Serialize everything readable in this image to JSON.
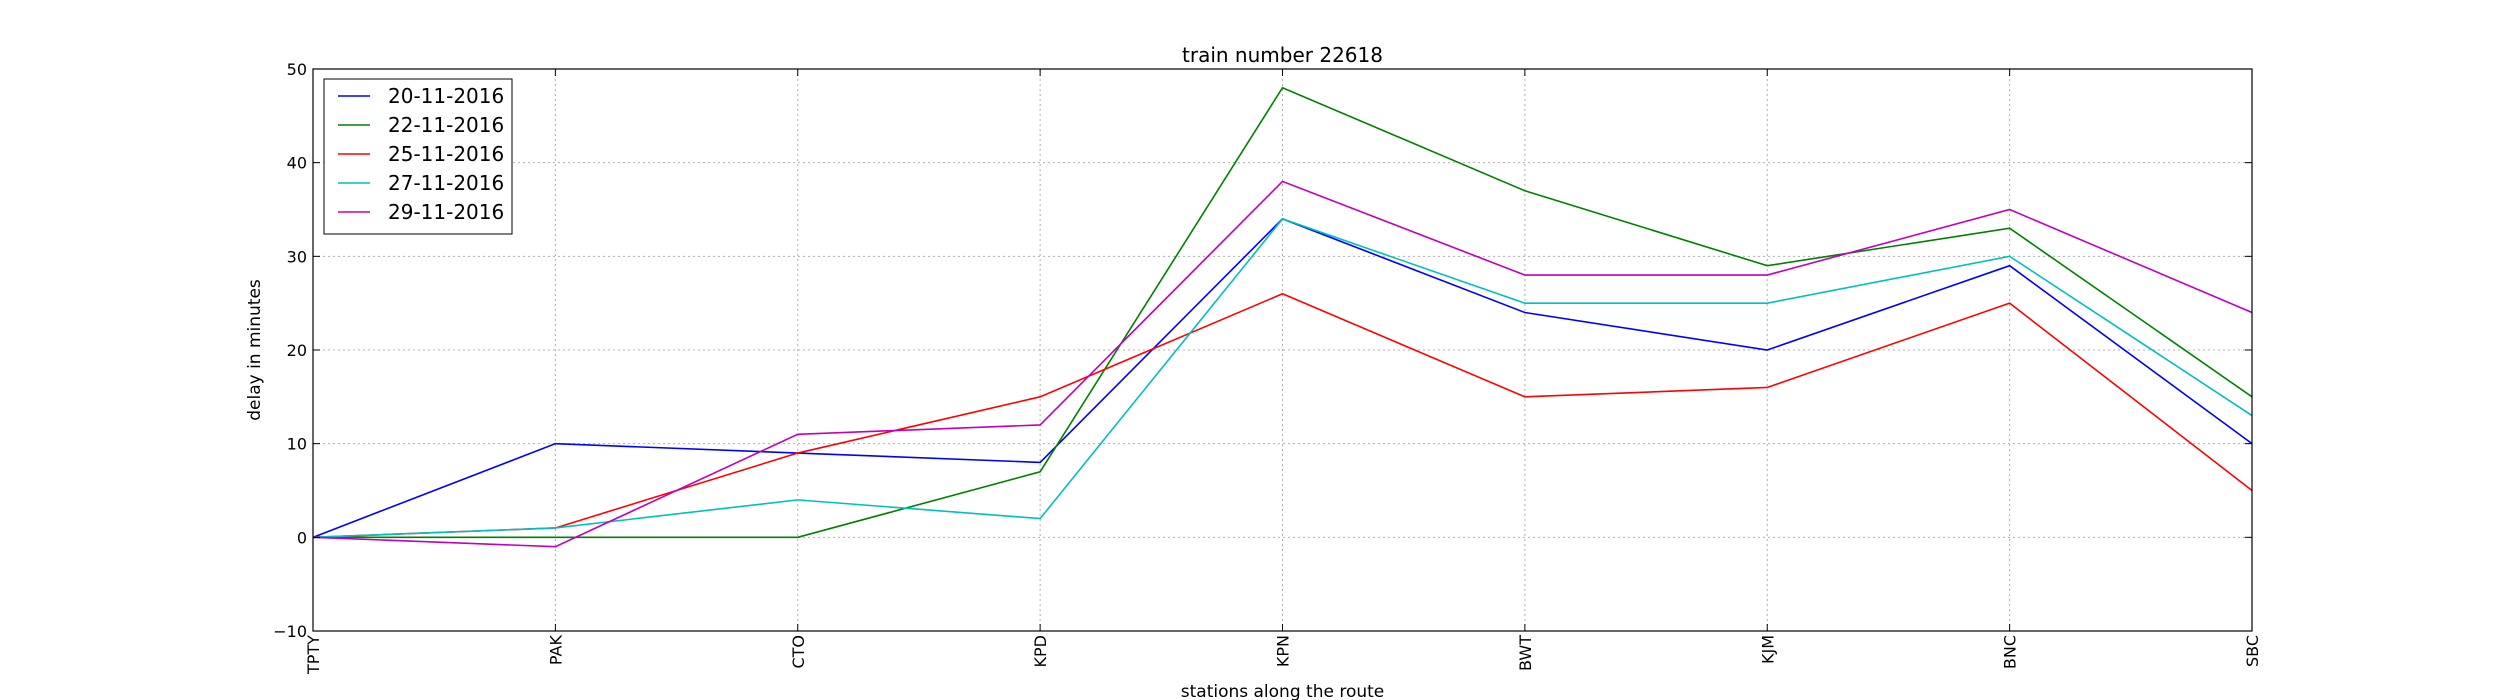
{
  "chart_data": {
    "type": "line",
    "title": "train number 22618",
    "xlabel": "stations along the route",
    "ylabel": "delay in minutes",
    "categories": [
      "TPTY",
      "PAK",
      "CTO",
      "KPD",
      "KPN",
      "BWT",
      "KJM",
      "BNC",
      "SBC"
    ],
    "ylim": [
      -10,
      50
    ],
    "yticks": [
      -10,
      0,
      10,
      20,
      30,
      40,
      50
    ],
    "grid": true,
    "legend_position": "top-left",
    "series": [
      {
        "name": "20-11-2016",
        "color": "#0000ff",
        "values": [
          0,
          10,
          9,
          8,
          34,
          24,
          20,
          29,
          10
        ]
      },
      {
        "name": "22-11-2016",
        "color": "#008000",
        "values": [
          0,
          0,
          0,
          7,
          48,
          37,
          29,
          33,
          15
        ]
      },
      {
        "name": "25-11-2016",
        "color": "#ff0000",
        "values": [
          0,
          1,
          9,
          15,
          26,
          15,
          16,
          25,
          5
        ]
      },
      {
        "name": "27-11-2016",
        "color": "#00bfbf",
        "values": [
          0,
          1,
          4,
          2,
          34,
          25,
          25,
          30,
          13
        ]
      },
      {
        "name": "29-11-2016",
        "color": "#bf00bf",
        "values": [
          0,
          -1,
          11,
          12,
          38,
          28,
          28,
          35,
          24
        ]
      }
    ]
  }
}
